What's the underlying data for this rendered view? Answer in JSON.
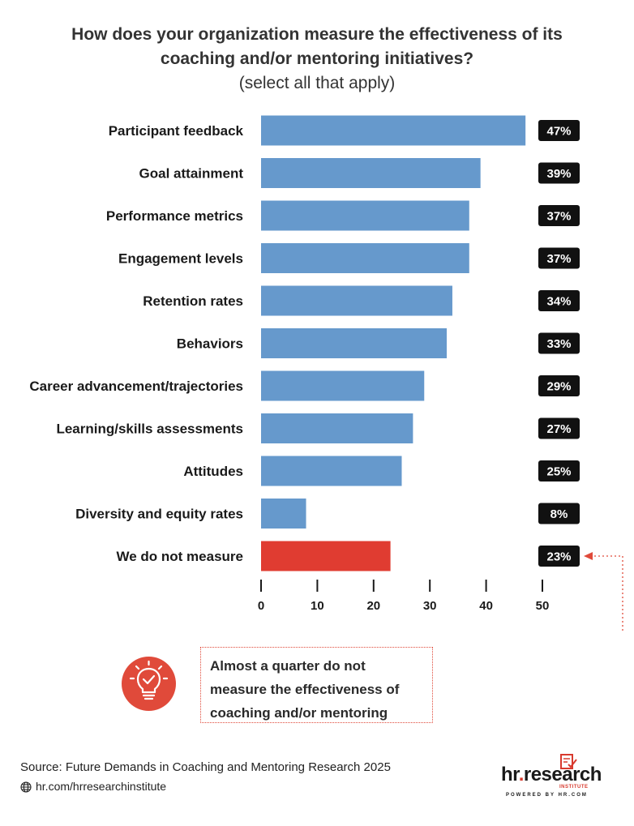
{
  "header": {
    "title_line1": "How does your organization measure the effectiveness of its",
    "title_line2": "coaching and/or mentoring initiatives?",
    "subtitle": "(select all that apply)"
  },
  "chart_data": {
    "type": "bar",
    "orientation": "horizontal",
    "categories": [
      "Participant feedback",
      "Goal attainment",
      "Performance metrics",
      "Engagement levels",
      "Retention rates",
      "Behaviors",
      "Career advancement/trajectories",
      "Learning/skills assessments",
      "Attitudes",
      "Diversity and equity rates",
      "We do not measure"
    ],
    "values": [
      47,
      39,
      37,
      37,
      34,
      33,
      29,
      27,
      25,
      8,
      23
    ],
    "value_labels": [
      "47%",
      "39%",
      "37%",
      "37%",
      "34%",
      "33%",
      "29%",
      "27%",
      "25%",
      "8%",
      "23%"
    ],
    "highlight_category": "We do not measure",
    "xlim": [
      0,
      50
    ],
    "xticks": [
      "0",
      "10",
      "20",
      "30",
      "40",
      "50"
    ],
    "colors": {
      "bar": "#6699cc",
      "highlight": "#e03c31",
      "label_bg": "#111111",
      "label_text": "#ffffff",
      "accent": "#e04a3a"
    }
  },
  "callout": {
    "icon": "lightbulb-check-icon",
    "text_line1": "Almost a quarter do not",
    "text_line2": "measure the effectiveness of",
    "text_line3": "coaching and/or mentoring"
  },
  "footer": {
    "source": "Source:  Future Demands in Coaching and Mentoring Research 2025",
    "link_icon": "globe-icon",
    "link": "hr.com/hrresearchinstitute",
    "logo": {
      "name_part1": "hr",
      "name_dot": ".",
      "name_part2": "research",
      "institute": "INSTITUTE",
      "powered_by": "POWERED BY HR.COM"
    }
  }
}
